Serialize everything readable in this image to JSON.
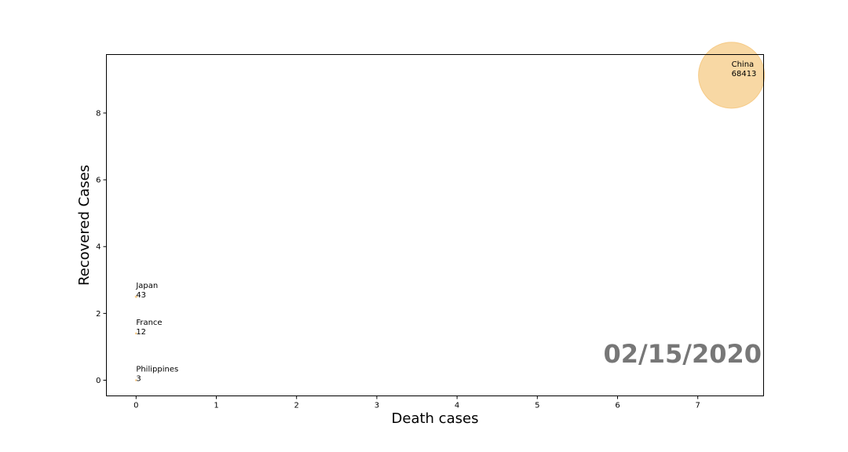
{
  "chart_data": {
    "type": "scatter",
    "title": "",
    "xlabel": "Death cases",
    "ylabel": "Recovered Cases",
    "xlim": [
      -0.37,
      7.82
    ],
    "ylim": [
      -0.47,
      9.75
    ],
    "xticks": [
      0,
      1,
      2,
      3,
      4,
      5,
      6,
      7
    ],
    "yticks": [
      0,
      2,
      4,
      6,
      8
    ],
    "grid": false,
    "bubble_color": "#f5c77e",
    "date_label": "02/15/2020",
    "date_color": "#777777",
    "points": [
      {
        "country": "China",
        "cases": "68413",
        "x": 7.42,
        "y": 9.13,
        "size": 68413
      },
      {
        "country": "Japan",
        "cases": "43",
        "x": 0.0,
        "y": 2.5,
        "size": 43
      },
      {
        "country": "France",
        "cases": "12",
        "x": 0.0,
        "y": 1.4,
        "size": 12
      },
      {
        "country": "Philippines",
        "cases": "3",
        "x": 0.0,
        "y": 0.0,
        "size": 3
      }
    ]
  }
}
